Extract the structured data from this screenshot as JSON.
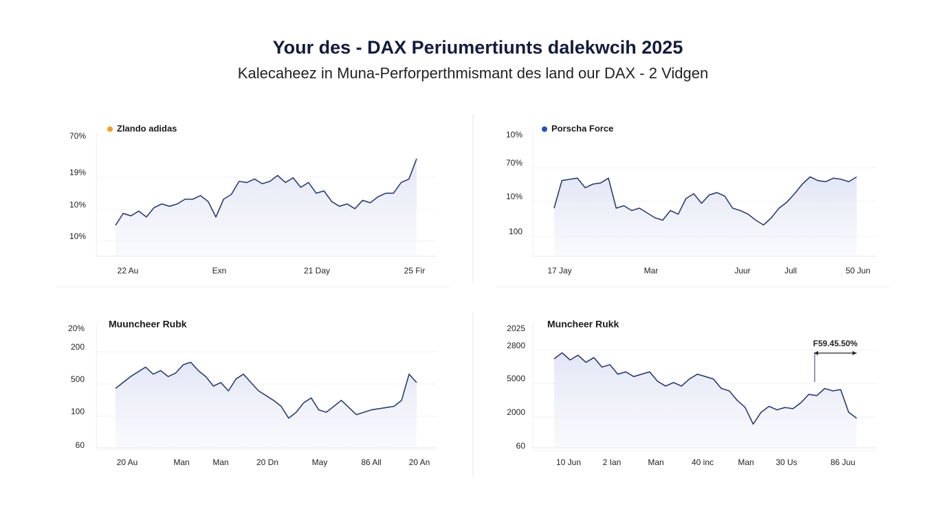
{
  "page": {
    "title": "Your des - DAX Periumertiunts dalekwcih 2025",
    "subtitle": "Kalecaheez in Muna-Perforperthmismant des land our DAX  - 2 Vidgen"
  },
  "chart_data": [
    {
      "type": "line",
      "ylim": [
        0,
        100
      ],
      "series": [
        {
          "name": "Zlando adidas",
          "color": "#2a3a6e",
          "marker_color": "#f0a030",
          "values": [
            26,
            36,
            34,
            38,
            33,
            41,
            44,
            42,
            44,
            48,
            48,
            51,
            46,
            33,
            48,
            52,
            63,
            62,
            65,
            61,
            63,
            68,
            62,
            66,
            58,
            62,
            53,
            55,
            46,
            42,
            44,
            40,
            47,
            45,
            50,
            53,
            53,
            62,
            65,
            82
          ]
        }
      ],
      "ylabels": [
        "70%",
        "19%",
        "10%",
        "10%"
      ],
      "xlabels": [
        "22 Au",
        "Exn",
        "21 Day",
        "25 Fir"
      ]
    },
    {
      "type": "line",
      "ylim": [
        0,
        100
      ],
      "series": [
        {
          "name": "Porscha Force",
          "color": "#2a3a6e",
          "marker_color": "#2b4fbf",
          "values": [
            40,
            63,
            64,
            65,
            57,
            60,
            61,
            65,
            40,
            42,
            38,
            40,
            36,
            32,
            30,
            38,
            35,
            48,
            52,
            44,
            51,
            53,
            50,
            40,
            38,
            35,
            30,
            26,
            32,
            40,
            45,
            52,
            60,
            66,
            63,
            62,
            65,
            64,
            62,
            66
          ]
        }
      ],
      "ylabels": [
        "10%",
        "70%",
        "10%",
        "100"
      ],
      "xlabels": [
        "17 Jay",
        "Mar",
        "Juur",
        "Jull",
        "50 Jun"
      ]
    },
    {
      "type": "line",
      "ylim": [
        0,
        100
      ],
      "title": "Muuncheer Rubk",
      "color": "#2a3a6e",
      "values": [
        50,
        55,
        60,
        64,
        68,
        62,
        65,
        60,
        63,
        70,
        72,
        65,
        60,
        52,
        55,
        48,
        58,
        62,
        55,
        48,
        44,
        40,
        35,
        25,
        30,
        38,
        42,
        32,
        30,
        35,
        40,
        34,
        28,
        30,
        32,
        33,
        34,
        35,
        40,
        62,
        55
      ],
      "ylabels": [
        "20%",
        "200",
        "500",
        "100",
        "60"
      ],
      "xlabels": [
        "20 Au",
        "Man",
        "Man",
        "20 Dn",
        "May",
        "86 All",
        "20 An"
      ]
    },
    {
      "type": "line",
      "ylim": [
        0,
        100
      ],
      "title": "Muncheer Rukk",
      "color": "#2a3a6e",
      "values": [
        75,
        80,
        74,
        78,
        72,
        76,
        68,
        70,
        62,
        64,
        60,
        62,
        64,
        56,
        52,
        55,
        52,
        58,
        62,
        60,
        58,
        50,
        48,
        40,
        34,
        20,
        30,
        35,
        32,
        34,
        33,
        38,
        45,
        44,
        50,
        48,
        49,
        30,
        25
      ],
      "ylabels": [
        "2025",
        "2800",
        "5000",
        "2000",
        "60"
      ],
      "xlabels": [
        "10 Jun",
        "2 Ian",
        "Man",
        "40 inc",
        "Man",
        "30 Us",
        "86 Juu"
      ],
      "annotation": "F59.45.50%"
    }
  ]
}
